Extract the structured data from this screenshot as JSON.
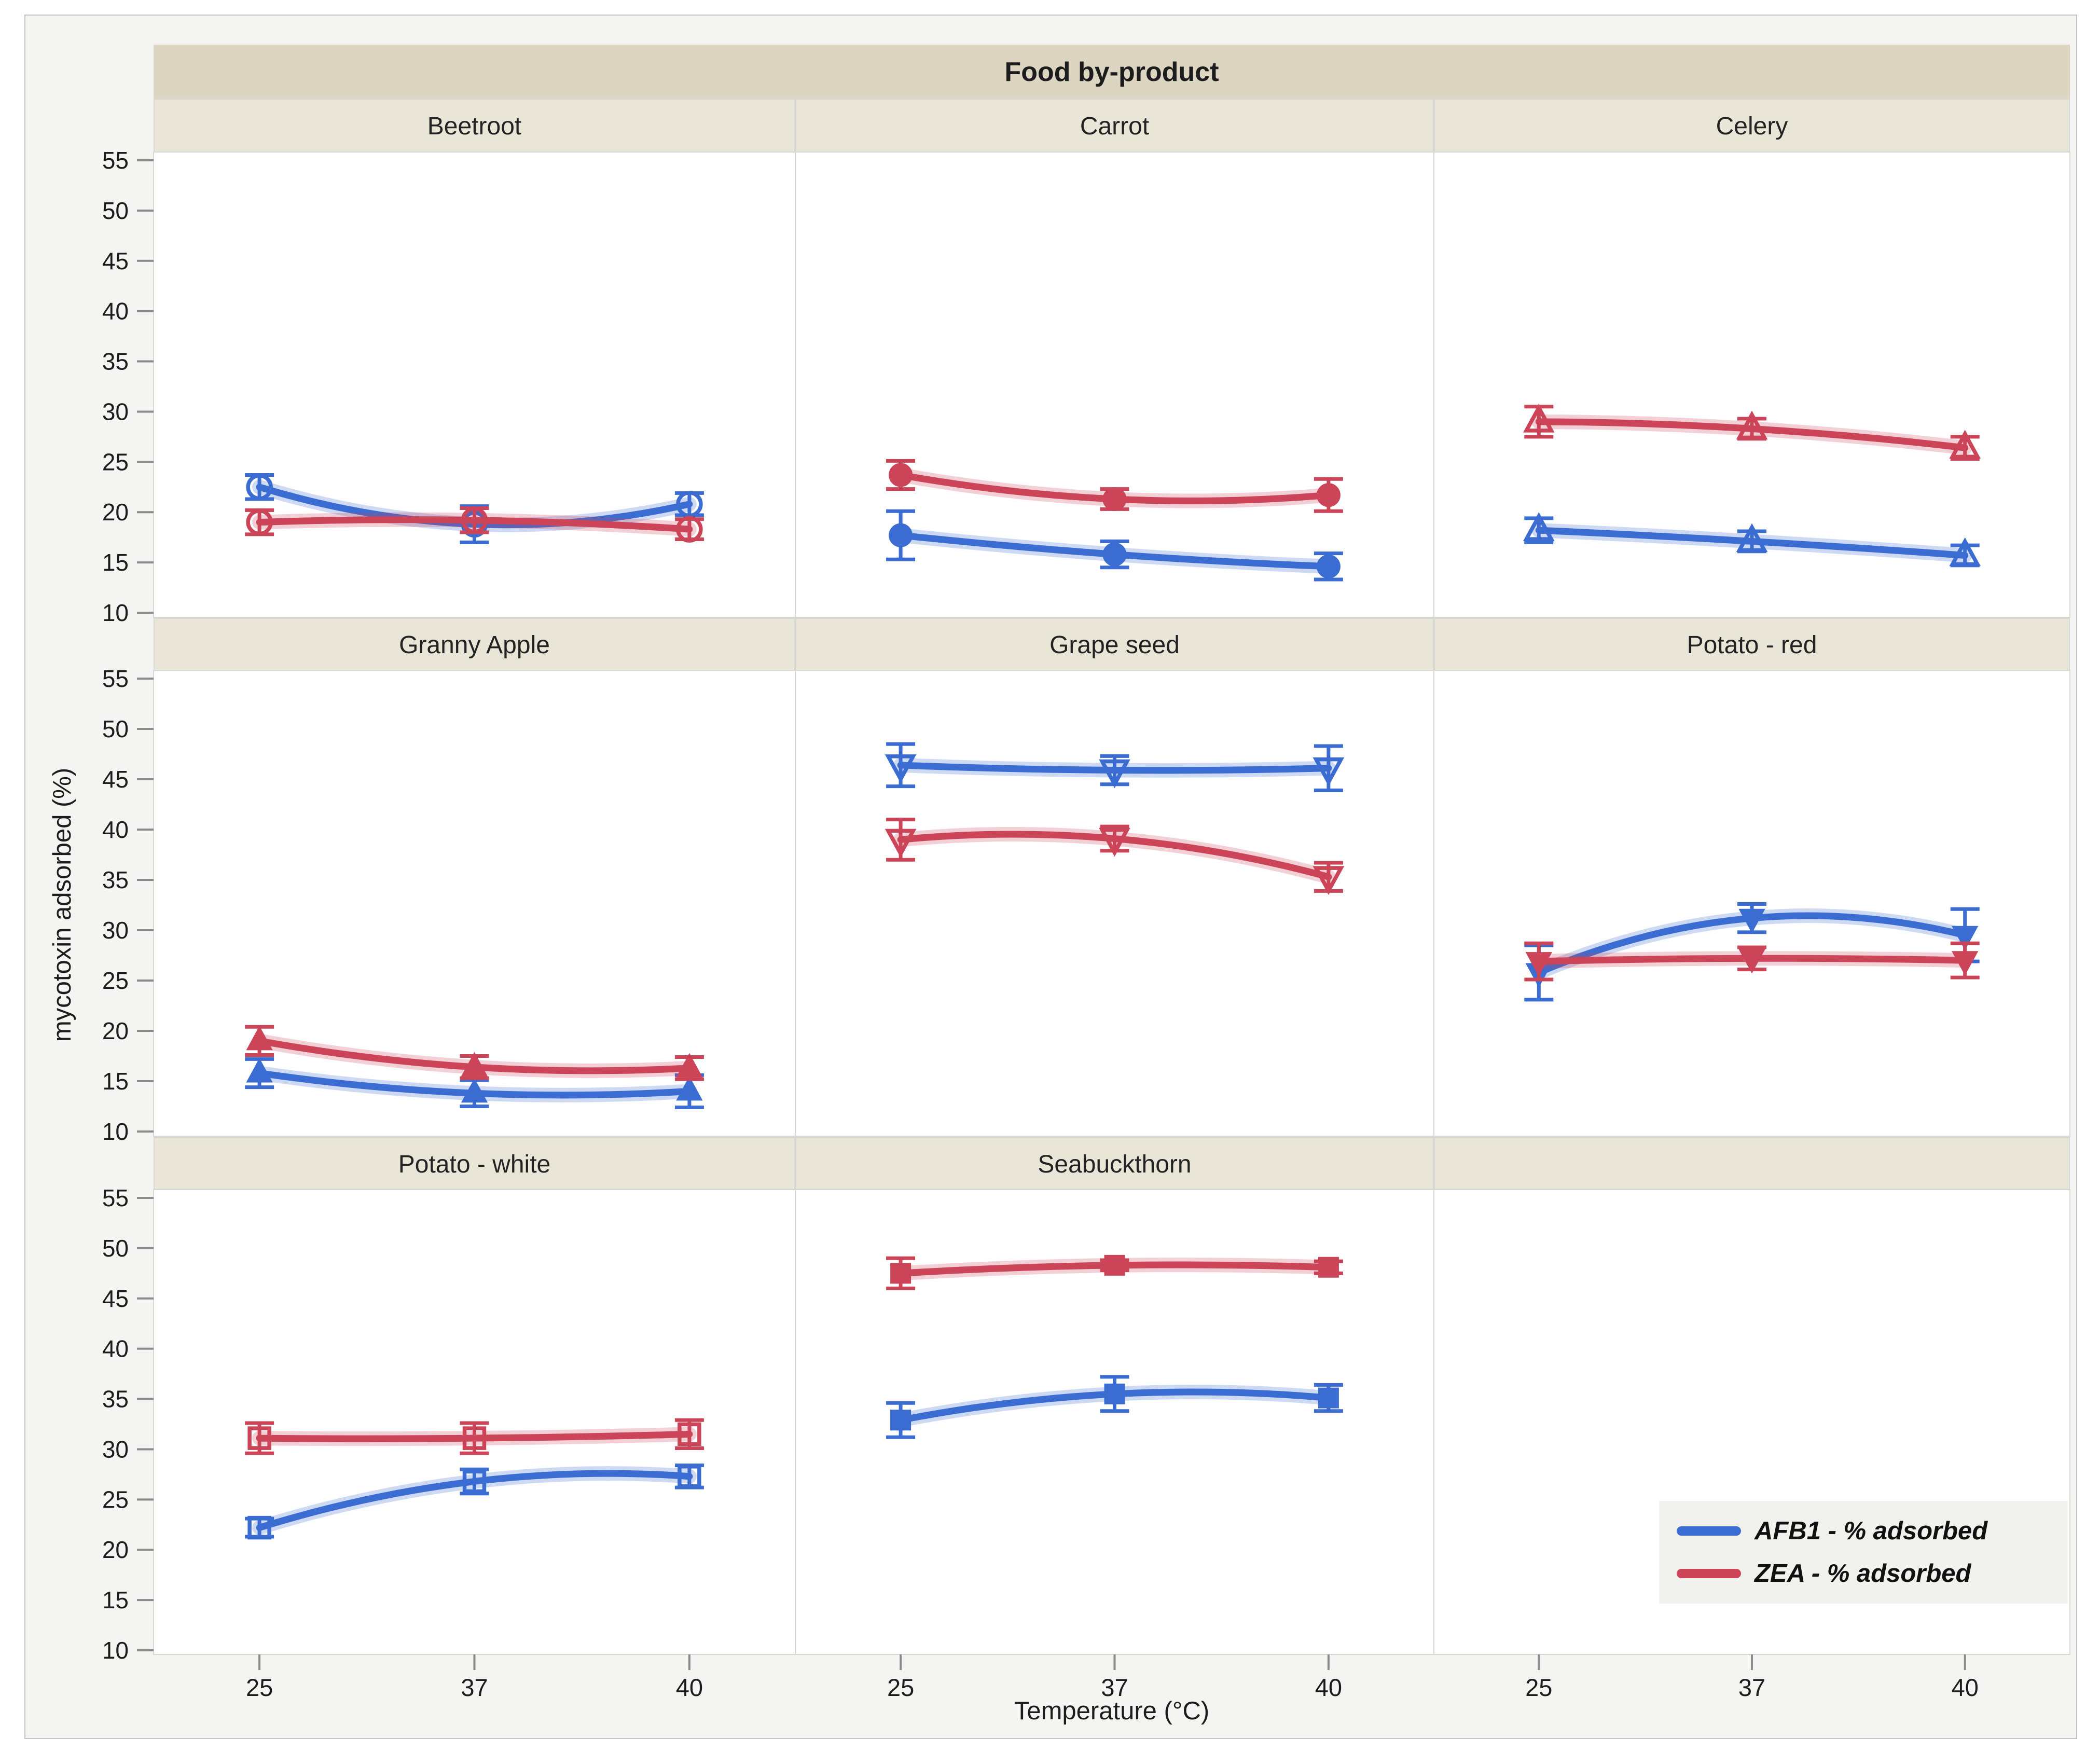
{
  "colors": {
    "afb1": "#3b6cd2",
    "zea": "#cb4457",
    "band_dark": "#dbd5c1",
    "band_light": "#e9e6d8",
    "figure_bg": "#f4f4f2",
    "panel_bg": "#ffffff",
    "panel_border": "#d8d8d3",
    "figure_border": "#c5c5c2",
    "tick": "#8a8a8a",
    "text": "#1c1c1c",
    "legend_bg": "#f1f1ee"
  },
  "chart_data": {
    "type": "line",
    "faceted": true,
    "facet_header": "Food by-product",
    "xlabel": "Temperature (°C)",
    "ylabel": "mycotoxin adsorbed (%)",
    "x_categories": [
      "25",
      "37",
      "40"
    ],
    "yticks": [
      55,
      50,
      45,
      40,
      35,
      30,
      25,
      20,
      15,
      10
    ],
    "ylim": [
      10,
      55
    ],
    "grid": false,
    "legend_position": "bottom-right-empty-facet",
    "series_info": [
      {
        "key": "AFB1",
        "name": "AFB1 - % adsorbed",
        "color": "#3b6cd2"
      },
      {
        "key": "ZEA",
        "name": "ZEA - % adsorbed",
        "color": "#cb4457"
      }
    ],
    "facets": [
      {
        "name": "Beetroot",
        "marker": "circle",
        "marker_style": "open",
        "series": [
          {
            "name": "AFB1",
            "values": [
              22.5,
              18.8,
              20.8
            ],
            "errors": [
              1.2,
              1.8,
              1.1
            ]
          },
          {
            "name": "ZEA",
            "values": [
              19.0,
              19.2,
              18.3
            ],
            "errors": [
              1.2,
              1.2,
              1.0
            ]
          }
        ]
      },
      {
        "name": "Carrot",
        "marker": "circle",
        "marker_style": "filled",
        "series": [
          {
            "name": "AFB1",
            "values": [
              17.7,
              15.8,
              14.6
            ],
            "errors": [
              2.4,
              1.3,
              1.3
            ]
          },
          {
            "name": "ZEA",
            "values": [
              23.7,
              21.3,
              21.7
            ],
            "errors": [
              1.4,
              1.0,
              1.6
            ]
          }
        ]
      },
      {
        "name": "Celery",
        "marker": "triangle-up",
        "marker_style": "open",
        "series": [
          {
            "name": "AFB1",
            "values": [
              18.2,
              17.1,
              15.7
            ],
            "errors": [
              1.2,
              1.0,
              1.0
            ]
          },
          {
            "name": "ZEA",
            "values": [
              29.0,
              28.3,
              26.4
            ],
            "errors": [
              1.5,
              1.0,
              1.1
            ]
          }
        ]
      },
      {
        "name": "Granny Apple",
        "marker": "triangle-up",
        "marker_style": "filled",
        "series": [
          {
            "name": "AFB1",
            "values": [
              15.8,
              13.8,
              14.0
            ],
            "errors": [
              1.4,
              1.3,
              1.6
            ]
          },
          {
            "name": "ZEA",
            "values": [
              19.0,
              16.4,
              16.3
            ],
            "errors": [
              1.4,
              1.1,
              1.1
            ]
          }
        ]
      },
      {
        "name": "Grape seed",
        "marker": "triangle-down",
        "marker_style": "open",
        "series": [
          {
            "name": "AFB1",
            "values": [
              46.4,
              45.9,
              46.1
            ],
            "errors": [
              2.1,
              1.4,
              2.2
            ]
          },
          {
            "name": "ZEA",
            "values": [
              39.0,
              39.1,
              35.3
            ],
            "errors": [
              2.0,
              1.2,
              1.4
            ]
          }
        ]
      },
      {
        "name": "Potato - red",
        "marker": "triangle-down",
        "marker_style": "filled",
        "series": [
          {
            "name": "AFB1",
            "values": [
              25.8,
              31.2,
              29.5
            ],
            "errors": [
              2.7,
              1.4,
              2.6
            ]
          },
          {
            "name": "ZEA",
            "values": [
              26.9,
              27.2,
              27.0
            ],
            "errors": [
              1.8,
              1.1,
              1.7
            ]
          }
        ]
      },
      {
        "name": "Potato - white",
        "marker": "square",
        "marker_style": "open",
        "series": [
          {
            "name": "AFB1",
            "values": [
              22.2,
              26.8,
              27.3
            ],
            "errors": [
              0.9,
              1.2,
              1.1
            ]
          },
          {
            "name": "ZEA",
            "values": [
              31.1,
              31.1,
              31.5
            ],
            "errors": [
              1.5,
              1.5,
              1.4
            ]
          }
        ]
      },
      {
        "name": "Seabuckthorn",
        "marker": "square",
        "marker_style": "filled",
        "series": [
          {
            "name": "AFB1",
            "values": [
              32.9,
              35.5,
              35.1
            ],
            "errors": [
              1.7,
              1.7,
              1.3
            ]
          },
          {
            "name": "ZEA",
            "values": [
              47.5,
              48.3,
              48.1
            ],
            "errors": [
              1.5,
              0.5,
              0.6
            ]
          }
        ]
      }
    ]
  }
}
